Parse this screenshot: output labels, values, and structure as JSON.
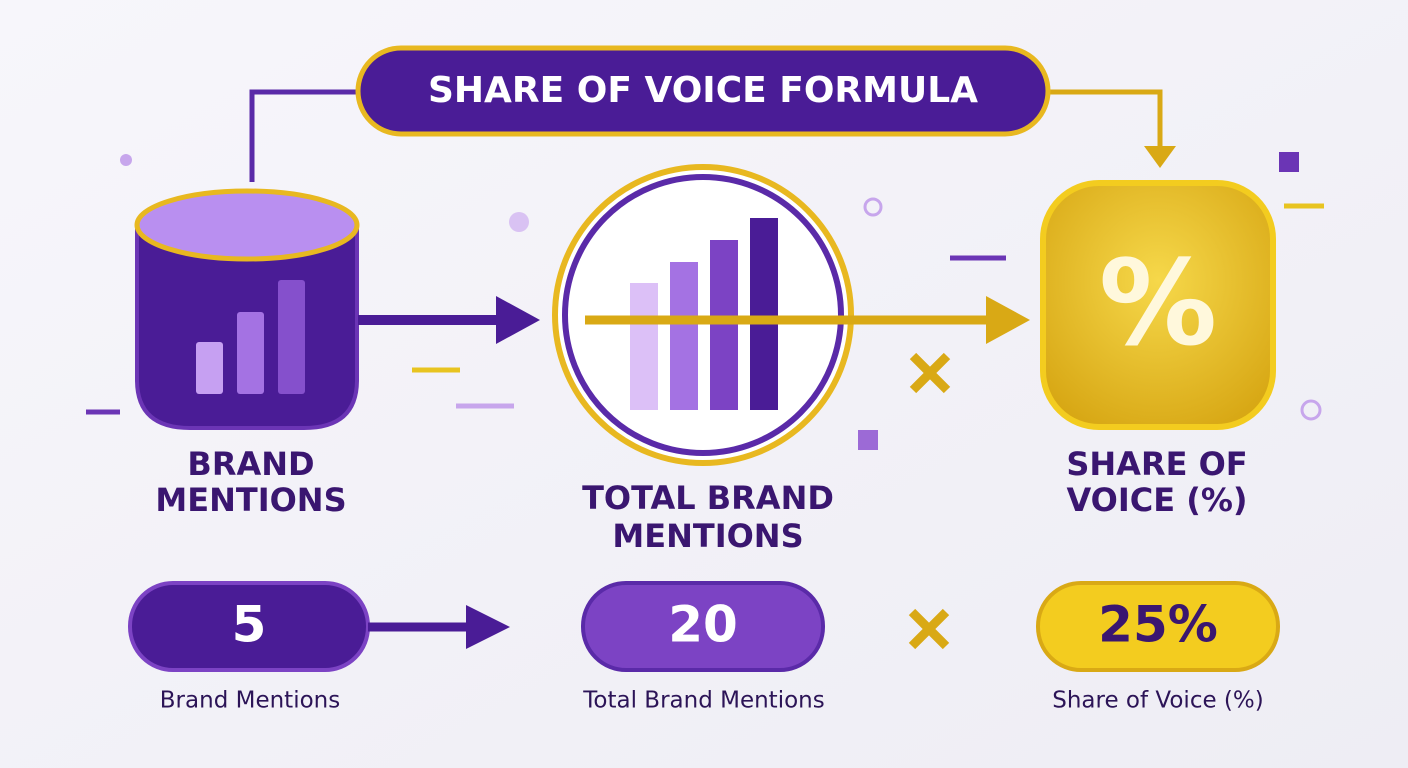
{
  "title": "SHARE OF VOICE FORMULA",
  "steps": [
    {
      "label": [
        "BRAND",
        "MENTIONS"
      ],
      "value": "5",
      "caption": "Brand Mentions"
    },
    {
      "label": [
        "TOTAL BRAND",
        "MENTIONS"
      ],
      "value": "20",
      "caption": "Total Brand Mentions"
    },
    {
      "label": [
        "SHARE OF",
        "VOICE (%)"
      ],
      "value": "25%",
      "caption": "Share of Voice (%)",
      "icon": "%"
    }
  ]
}
